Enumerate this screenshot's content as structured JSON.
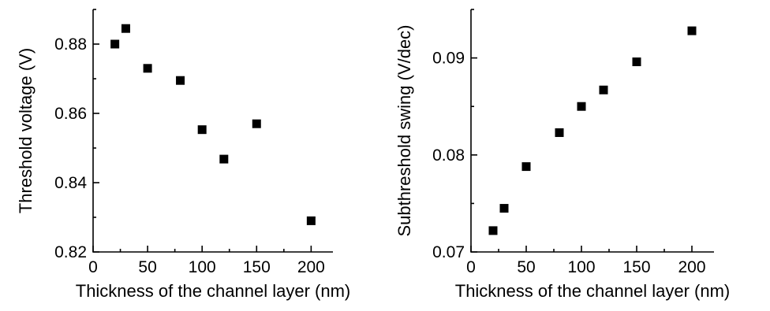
{
  "chart_data": [
    {
      "type": "scatter",
      "xlabel": "Thickness of the channel layer (nm)",
      "ylabel": "Threshold voltage (V)",
      "xlim": [
        0,
        220
      ],
      "ylim": [
        0.82,
        0.89
      ],
      "xticks": [
        0,
        50,
        100,
        150,
        200
      ],
      "xtick_labels": [
        "0",
        "50",
        "100",
        "150",
        "200"
      ],
      "yticks": [
        0.82,
        0.84,
        0.86,
        0.88
      ],
      "ytick_labels": [
        "0.82",
        "0.84",
        "0.86",
        "0.88"
      ],
      "x_minor_step": 25,
      "y_minor_step": 0.01,
      "marker": "square",
      "color": "#000000",
      "x": [
        20,
        30,
        50,
        80,
        100,
        120,
        150,
        200
      ],
      "y": [
        0.88,
        0.8845,
        0.873,
        0.8695,
        0.8553,
        0.8468,
        0.857,
        0.829
      ]
    },
    {
      "type": "scatter",
      "xlabel": "Thickness of the channel layer (nm)",
      "ylabel": "Subthreshold swing (V/dec)",
      "xlim": [
        0,
        220
      ],
      "ylim": [
        0.07,
        0.095
      ],
      "xticks": [
        0,
        50,
        100,
        150,
        200
      ],
      "xtick_labels": [
        "0",
        "50",
        "100",
        "150",
        "200"
      ],
      "yticks": [
        0.07,
        0.08,
        0.09
      ],
      "ytick_labels": [
        "0.07",
        "0.08",
        "0.09"
      ],
      "x_minor_step": 25,
      "y_minor_step": 0.005,
      "marker": "square",
      "color": "#000000",
      "x": [
        20,
        30,
        50,
        80,
        100,
        120,
        150,
        200
      ],
      "y": [
        0.0722,
        0.0745,
        0.0788,
        0.0823,
        0.085,
        0.0867,
        0.0896,
        0.0928
      ]
    }
  ]
}
